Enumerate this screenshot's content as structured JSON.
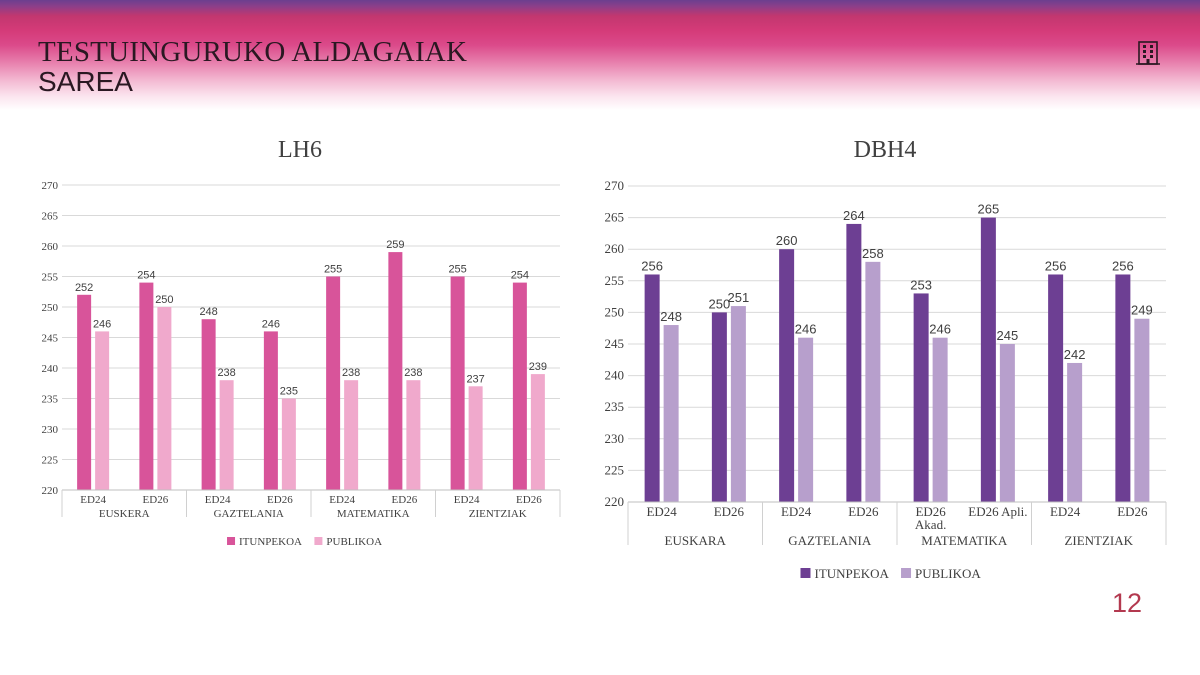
{
  "header": {
    "title": "TESTUINGURUKO ALDAGAIAK",
    "subtitle": "SAREA",
    "icon": "building-icon"
  },
  "page_number": "12",
  "colors": {
    "lh6_itunpekoa": "#d8549a",
    "lh6_publikoa": "#f0a9cc",
    "dbh4_itunpekoa": "#6d3f93",
    "dbh4_publikoa": "#b79fcc"
  },
  "chart_data": [
    {
      "id": "lh6",
      "type": "bar",
      "title": "LH6",
      "ylim": [
        220,
        270
      ],
      "yticks": [
        220,
        225,
        230,
        235,
        240,
        245,
        250,
        255,
        260,
        265,
        270
      ],
      "grid": true,
      "legend": "bottom",
      "groups": [
        "EUSKERA",
        "GAZTELANIA",
        "MATEMATIKA",
        "ZIENTZIAK"
      ],
      "categories": [
        "ED24",
        "ED26",
        "ED24",
        "ED26",
        "ED24",
        "ED26",
        "ED24",
        "ED26"
      ],
      "series": [
        {
          "name": "ITUNPEKOA",
          "values": [
            252,
            254,
            248,
            246,
            255,
            259,
            255,
            254
          ]
        },
        {
          "name": "PUBLIKOA",
          "values": [
            246,
            250,
            238,
            235,
            238,
            238,
            237,
            239
          ]
        }
      ]
    },
    {
      "id": "dbh4",
      "type": "bar",
      "title": "DBH4",
      "ylim": [
        220,
        270
      ],
      "yticks": [
        220,
        225,
        230,
        235,
        240,
        245,
        250,
        255,
        260,
        265,
        270
      ],
      "grid": true,
      "legend": "bottom",
      "groups": [
        "EUSKARA",
        "GAZTELANIA",
        "MATEMATIKA",
        "ZIENTZIAK"
      ],
      "categories": [
        "ED24",
        "ED26",
        "ED24",
        "ED26",
        "ED26 Akad.",
        "ED26 Apli.",
        "ED24",
        "ED26"
      ],
      "series": [
        {
          "name": "ITUNPEKOA",
          "values": [
            256,
            250,
            260,
            264,
            253,
            265,
            256,
            256
          ]
        },
        {
          "name": "PUBLIKOA",
          "values": [
            248,
            251,
            246,
            258,
            246,
            245,
            242,
            249
          ]
        }
      ]
    }
  ]
}
